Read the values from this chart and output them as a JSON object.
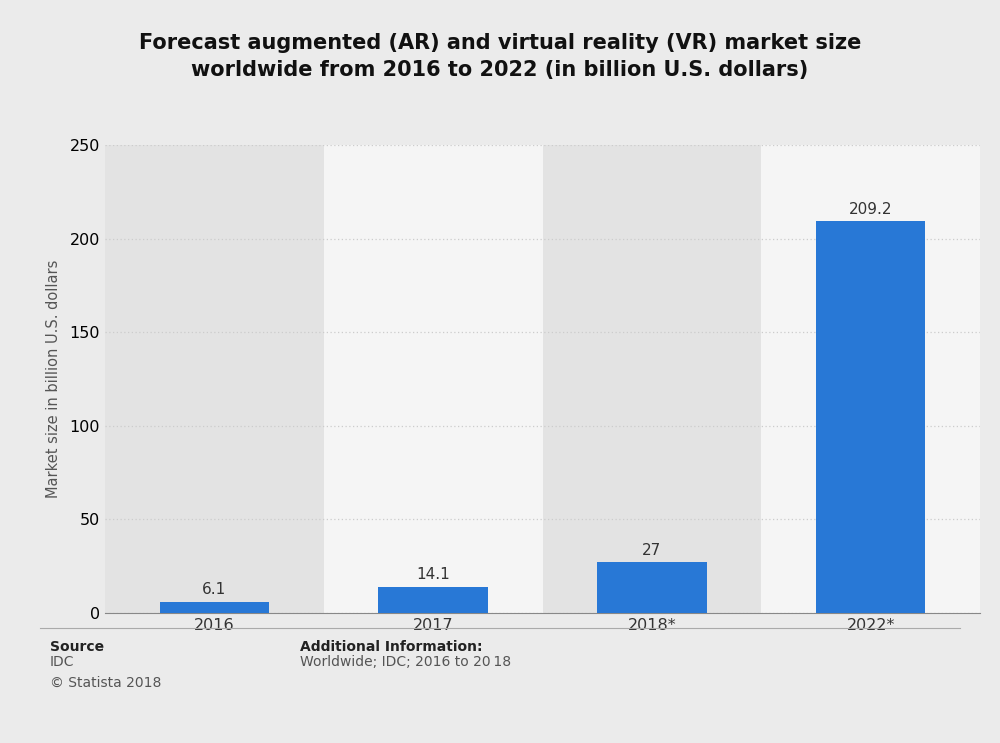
{
  "title_line1": "Forecast augmented (AR) and virtual reality (VR) market size",
  "title_line2": "worldwide from 2016 to 2022 (in billion U.S. dollars)",
  "categories": [
    "2016",
    "2017",
    "2018*",
    "2022*"
  ],
  "values": [
    6.1,
    14.1,
    27,
    209.2
  ],
  "bar_color": "#2878D6",
  "ylabel": "Market size in billion U.S. dollars",
  "ylim": [
    0,
    250
  ],
  "yticks": [
    0,
    50,
    100,
    150,
    200,
    250
  ],
  "background_color": "#ebebeb",
  "plot_bg_color": "#ebebeb",
  "col_bg_light": "#f5f5f5",
  "col_bg_dark": "#e3e3e3",
  "grid_color": "#cccccc",
  "title_fontsize": 15,
  "label_fontsize": 10.5,
  "tick_fontsize": 11.5,
  "annotation_fontsize": 11,
  "source_bold": "Source",
  "source_normal": "IDC\n© Statista 2018",
  "additional_info_label": "Additional Information:",
  "additional_info_value": "Worldwide; IDC; 2016 to 20 18",
  "footer_fontsize": 10
}
